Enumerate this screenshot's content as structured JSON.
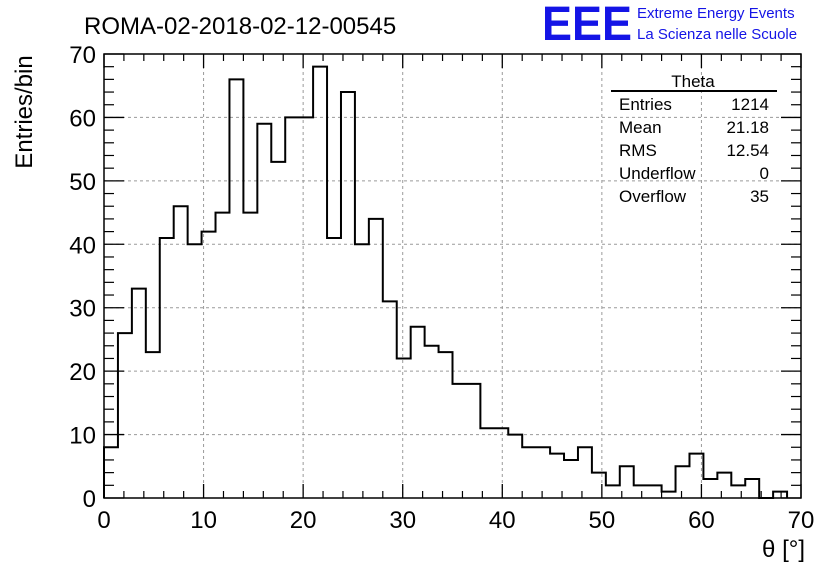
{
  "chart_data": {
    "type": "bar",
    "title": "ROMA-02-2018-02-12-00545",
    "xlabel": "θ [°]",
    "ylabel": "Entries/bin",
    "xlim": [
      0,
      70
    ],
    "ylim": [
      0,
      70
    ],
    "bin_width": 1.4,
    "values": [
      8,
      26,
      33,
      23,
      41,
      46,
      40,
      42,
      45,
      66,
      45,
      59,
      53,
      60,
      60,
      68,
      41,
      64,
      40,
      44,
      31,
      22,
      27,
      24,
      23,
      18,
      18,
      11,
      11,
      10,
      8,
      8,
      7,
      6,
      8,
      4,
      2,
      5,
      2,
      2,
      1,
      5,
      7,
      3,
      4,
      2,
      3,
      0,
      1
    ],
    "x_ticks": [
      "0",
      "10",
      "20",
      "30",
      "40",
      "50",
      "60",
      "70"
    ],
    "y_ticks": [
      "0",
      "10",
      "20",
      "30",
      "40",
      "50",
      "60",
      "70"
    ],
    "grid": true,
    "stats": {
      "name": "Theta",
      "rows": [
        {
          "label": "Entries",
          "value": "1214"
        },
        {
          "label": "Mean",
          "value": "21.18"
        },
        {
          "label": "RMS",
          "value": "12.54"
        },
        {
          "label": "Underflow",
          "value": "0"
        },
        {
          "label": "Overflow",
          "value": "35"
        }
      ]
    }
  },
  "logo": {
    "text": "EEE",
    "line1": "Extreme Energy Events",
    "line2": "La Scienza nelle Scuole",
    "color": "#1414e6"
  }
}
